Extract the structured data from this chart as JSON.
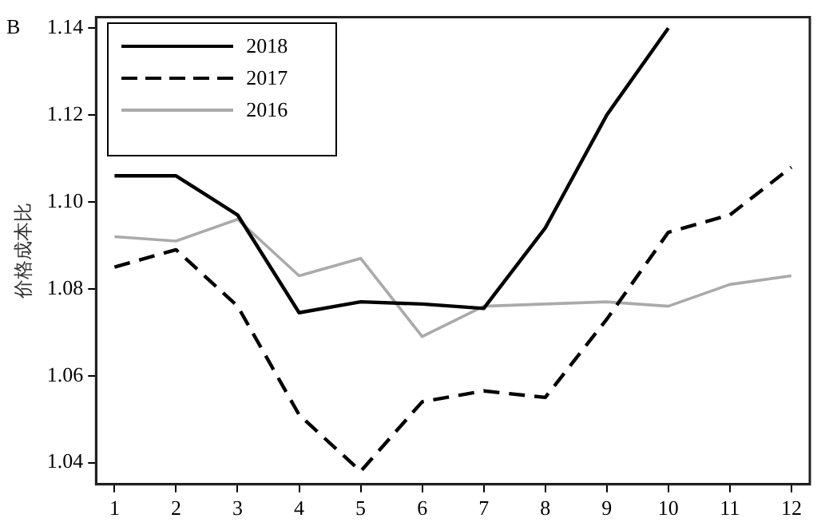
{
  "chart_data": {
    "type": "line",
    "ylabel": "价格成本比",
    "annotations": [
      "B"
    ],
    "x": [
      1,
      2,
      3,
      4,
      5,
      6,
      7,
      8,
      9,
      10,
      11,
      12
    ],
    "xlim": [
      0.7,
      12.3
    ],
    "xticks": [
      1,
      2,
      3,
      4,
      5,
      6,
      7,
      8,
      9,
      10,
      11,
      12
    ],
    "ylim": [
      1.035,
      1.1425
    ],
    "yticks": [
      1.04,
      1.06,
      1.08,
      {
        "value": 1.1,
        "label": "1.10"
      },
      1.12,
      1.14
    ],
    "grid": false,
    "legend": "top left",
    "marker": "none",
    "series": [
      {
        "name": "2018",
        "color": "#000000",
        "line_style": "solid",
        "values": [
          1.106,
          1.106,
          1.097,
          1.0745,
          1.077,
          1.0765,
          1.0755,
          1.094,
          1.12,
          1.14,
          null,
          null
        ]
      },
      {
        "name": "2017",
        "color": "#000000",
        "line_style": "dashed",
        "values": [
          1.085,
          1.089,
          1.076,
          1.051,
          1.038,
          1.054,
          1.0565,
          1.055,
          1.073,
          1.093,
          1.097,
          1.108
        ]
      },
      {
        "name": "2016",
        "color": "#aaaaaa",
        "line_style": "solid",
        "values": [
          1.092,
          1.091,
          1.096,
          1.083,
          1.087,
          1.069,
          1.076,
          1.0765,
          1.077,
          1.076,
          1.081,
          1.083
        ]
      }
    ]
  }
}
